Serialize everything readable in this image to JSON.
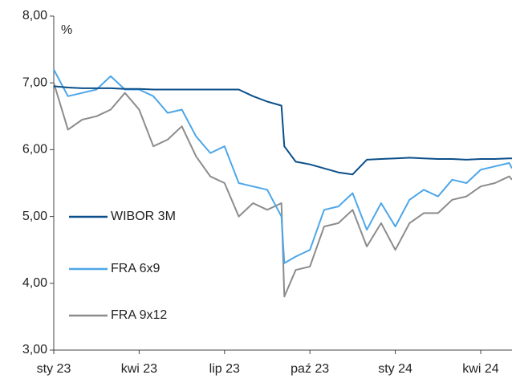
{
  "chart_data": {
    "type": "line",
    "y_unit": "%",
    "x": [
      0,
      0.5,
      1,
      1.5,
      2,
      2.5,
      3,
      3.5,
      4,
      4.5,
      5,
      5.5,
      6,
      6.5,
      7,
      7.5,
      8,
      8.1,
      8.5,
      9,
      9.5,
      10,
      10.5,
      11,
      11.5,
      12,
      12.5,
      13,
      13.5,
      14,
      14.5,
      15,
      15.5,
      16,
      16.1
    ],
    "series": [
      {
        "name": "WIBOR 3M",
        "color": "#0b4f8a",
        "values": [
          6.95,
          6.93,
          6.92,
          6.92,
          6.92,
          6.91,
          6.91,
          6.9,
          6.9,
          6.9,
          6.9,
          6.9,
          6.9,
          6.9,
          6.8,
          6.72,
          6.66,
          6.05,
          5.82,
          5.78,
          5.72,
          5.66,
          5.63,
          5.85,
          5.86,
          5.87,
          5.88,
          5.87,
          5.86,
          5.86,
          5.85,
          5.86,
          5.86,
          5.87,
          5.87
        ]
      },
      {
        "name": "FRA 6x9",
        "color": "#4da6e8",
        "values": [
          7.2,
          6.8,
          6.85,
          6.9,
          7.1,
          6.9,
          6.9,
          6.8,
          6.55,
          6.6,
          6.2,
          5.95,
          6.05,
          5.5,
          5.45,
          5.4,
          5.0,
          4.3,
          4.4,
          4.5,
          5.1,
          5.15,
          5.35,
          4.8,
          5.2,
          4.85,
          5.25,
          5.4,
          5.3,
          5.55,
          5.5,
          5.7,
          5.75,
          5.8,
          5.72
        ]
      },
      {
        "name": "FRA 9x12",
        "color": "#8c8c8c",
        "values": [
          7.0,
          6.3,
          6.45,
          6.5,
          6.6,
          6.85,
          6.6,
          6.05,
          6.15,
          6.35,
          5.9,
          5.6,
          5.5,
          5.0,
          5.2,
          5.1,
          5.2,
          3.8,
          4.2,
          4.25,
          4.85,
          4.9,
          5.1,
          4.55,
          4.9,
          4.5,
          4.9,
          5.05,
          5.05,
          5.25,
          5.3,
          5.45,
          5.5,
          5.6,
          5.55
        ]
      }
    ],
    "xlim": [
      0,
      16.1
    ],
    "xticks": [
      {
        "value": 0,
        "label": "sty 23"
      },
      {
        "value": 3,
        "label": "kwi 23"
      },
      {
        "value": 6,
        "label": "lip 23"
      },
      {
        "value": 9,
        "label": "paź 23"
      },
      {
        "value": 12,
        "label": "sty 24"
      },
      {
        "value": 15,
        "label": "kwi 24"
      }
    ],
    "ylim": [
      3,
      8
    ],
    "yticks": [
      {
        "value": 3,
        "label": "3,00"
      },
      {
        "value": 4,
        "label": "4,00"
      },
      {
        "value": 5,
        "label": "5,00"
      },
      {
        "value": 6,
        "label": "6,00"
      },
      {
        "value": 7,
        "label": "7,00"
      },
      {
        "value": 8,
        "label": "8,00"
      }
    ],
    "grid": false,
    "legend": "left"
  }
}
